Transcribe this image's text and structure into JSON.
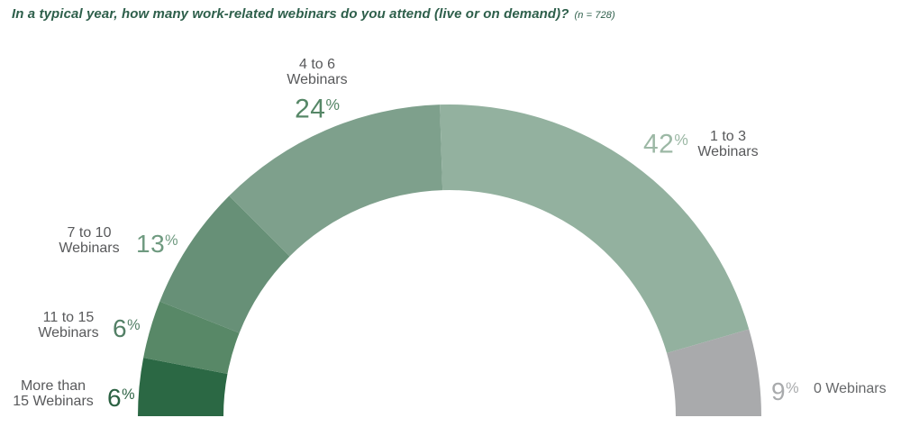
{
  "title": {
    "text": "In a typical year, how many work-related webinars do you attend (live or on demand)?",
    "sample": "(n = 728)"
  },
  "chart_data": {
    "type": "pie",
    "subtype": "semicircle-donut",
    "title": "In a typical year, how many work-related webinars do you attend (live or on demand)?",
    "annotation": "(n = 728)",
    "unit": "%",
    "categories": [
      "More than 15 Webinars",
      "11 to 15 Webinars",
      "7 to 10 Webinars",
      "4 to 6 Webinars",
      "1 to 3 Webinars",
      "0 Webinars"
    ],
    "values": [
      6,
      6,
      13,
      24,
      42,
      9
    ],
    "segments": [
      {
        "id": "15plus",
        "label": "More than 15 Webinars",
        "value": 6,
        "color": "#2b6844",
        "value_color": "#2c6243"
      },
      {
        "id": "11to15",
        "label": "11 to 15 Webinars",
        "value": 6,
        "color": "#588867",
        "value_color": "#527f65"
      },
      {
        "id": "7to10",
        "label": "7 to 10 Webinars",
        "value": 13,
        "color": "#679077",
        "value_color": "#6f9a80"
      },
      {
        "id": "4to6",
        "label": "4 to 6 Webinars",
        "value": 24,
        "color": "#7ea08c",
        "value_color": "#568767"
      },
      {
        "id": "1to3",
        "label": "1 to 3 Webinars",
        "value": 42,
        "color": "#93b19f",
        "value_color": "#9cb8a5"
      },
      {
        "id": "0",
        "label": "0 Webinars",
        "value": 9,
        "color": "#a9aaac",
        "value_color": "#a8aaac"
      }
    ],
    "legend": "none",
    "labels_position": "outside-callouts"
  },
  "callouts": {
    "four_to_six": {
      "line1": "4 to 6",
      "line2": "Webinars",
      "value": "24",
      "sign": "%"
    },
    "one_to_three": {
      "line1": "1 to 3",
      "line2": "Webinars",
      "value": "42",
      "sign": "%"
    },
    "seven_to_ten": {
      "line1": "7 to 10",
      "line2": "Webinars",
      "value": "13",
      "sign": "%"
    },
    "eleven_to_fifteen": {
      "line1": "11 to 15",
      "line2": "Webinars",
      "value": "6",
      "sign": "%"
    },
    "more_than_fifteen": {
      "line1": "More than",
      "line2": "15 Webinars",
      "value": "6",
      "sign": "%"
    },
    "zero": {
      "label": "0 Webinars",
      "value": "9",
      "sign": "%"
    }
  },
  "colors": {
    "title": "#2e5f4b",
    "category_label": "#58595b",
    "background": "#ffffff"
  }
}
